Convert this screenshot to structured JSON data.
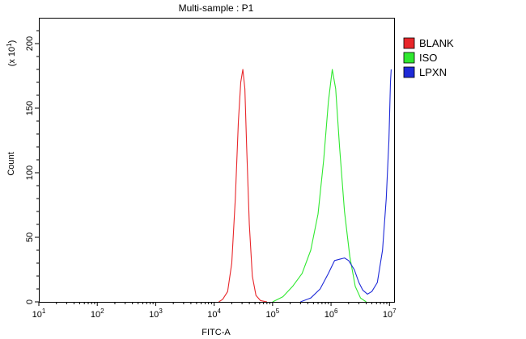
{
  "chart_data": {
    "type": "line",
    "title": "Multi-sample : P1",
    "xlabel": "FITC-A",
    "ylabel": "Count",
    "y_multiplier_label": {
      "base": "(x 10",
      "exponent": "1",
      "close": ")"
    },
    "x_scale": "log",
    "xlim": [
      10,
      12000000
    ],
    "ylim": [
      0,
      220
    ],
    "x_ticks": [
      {
        "value": 10,
        "base": "10",
        "exp": "1"
      },
      {
        "value": 100,
        "base": "10",
        "exp": "2"
      },
      {
        "value": 1000,
        "base": "10",
        "exp": "3"
      },
      {
        "value": 10000,
        "base": "10",
        "exp": "4"
      },
      {
        "value": 100000,
        "base": "10",
        "exp": "5"
      },
      {
        "value": 1000000,
        "base": "10",
        "exp": "6"
      },
      {
        "value": 10000000,
        "base": "10",
        "exp": "7"
      }
    ],
    "y_ticks": [
      {
        "value": 0,
        "label": "0"
      },
      {
        "value": 50,
        "label": "50"
      },
      {
        "value": 100,
        "label": "100"
      },
      {
        "value": 150,
        "label": "150"
      },
      {
        "value": 200,
        "label": "200"
      }
    ],
    "legend_position": "top-right",
    "grid": false,
    "series": [
      {
        "name": "BLANK",
        "color": "#e8262a",
        "points": [
          [
            12000,
            0
          ],
          [
            14000,
            2
          ],
          [
            17000,
            8
          ],
          [
            20000,
            30
          ],
          [
            23000,
            80
          ],
          [
            26000,
            140
          ],
          [
            28500,
            170
          ],
          [
            31000,
            180
          ],
          [
            33500,
            165
          ],
          [
            36000,
            120
          ],
          [
            40000,
            60
          ],
          [
            45000,
            20
          ],
          [
            52000,
            5
          ],
          [
            62000,
            1
          ],
          [
            80000,
            0
          ]
        ]
      },
      {
        "name": "ISO",
        "color": "#2fe82f",
        "points": [
          [
            100000,
            0
          ],
          [
            150000,
            4
          ],
          [
            220000,
            12
          ],
          [
            320000,
            22
          ],
          [
            450000,
            40
          ],
          [
            600000,
            68
          ],
          [
            750000,
            110
          ],
          [
            900000,
            155
          ],
          [
            1050000,
            180
          ],
          [
            1200000,
            165
          ],
          [
            1400000,
            120
          ],
          [
            1700000,
            70
          ],
          [
            2100000,
            35
          ],
          [
            2600000,
            12
          ],
          [
            3200000,
            3
          ],
          [
            4000000,
            0
          ]
        ]
      },
      {
        "name": "LPXN",
        "color": "#1e2ad8",
        "points": [
          [
            300000,
            0
          ],
          [
            450000,
            3
          ],
          [
            650000,
            10
          ],
          [
            900000,
            22
          ],
          [
            1150000,
            32
          ],
          [
            1400000,
            33
          ],
          [
            1700000,
            34
          ],
          [
            2000000,
            32
          ],
          [
            2500000,
            25
          ],
          [
            3000000,
            15
          ],
          [
            3500000,
            9
          ],
          [
            4200000,
            6
          ],
          [
            5000000,
            8
          ],
          [
            6200000,
            15
          ],
          [
            7600000,
            40
          ],
          [
            8800000,
            80
          ],
          [
            9800000,
            125
          ],
          [
            10400000,
            170
          ],
          [
            10700000,
            180
          ]
        ]
      }
    ]
  }
}
